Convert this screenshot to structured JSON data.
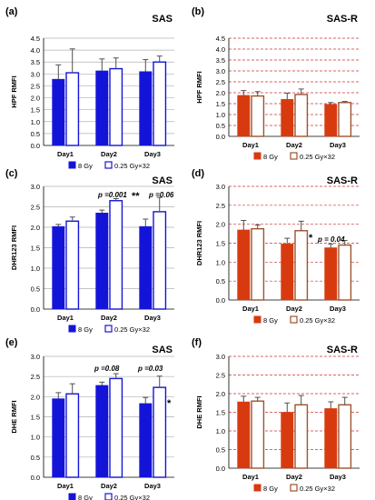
{
  "figure": {
    "panels": [
      {
        "label": "(a)",
        "title": "SAS",
        "ylabel": "HPF RMFI",
        "ylim": [
          0,
          4.5
        ],
        "yticks": [
          "0.0",
          "0.5",
          "1.0",
          "1.5",
          "2.0",
          "2.5",
          "3.0",
          "3.5",
          "4.0",
          "4.5"
        ],
        "legend": [
          "8 Gy",
          "0.25 Gy×32"
        ],
        "annotations": []
      },
      {
        "label": "(b)",
        "title": "SAS-R",
        "ylabel": "HPF RMFI",
        "ylim": [
          0,
          4.5
        ],
        "yticks": [
          "0.0",
          "0.5",
          "1.0",
          "1.5",
          "2.0",
          "2.5",
          "3.0",
          "3.5",
          "4.0",
          "4.5"
        ],
        "legend": [
          "8 Gy",
          "0.25 Gy×32"
        ],
        "annotations": []
      },
      {
        "label": "(c)",
        "title": "SAS",
        "ylabel": "DHR123 RMFI",
        "ylim": [
          0,
          3.0
        ],
        "yticks": [
          "0.0",
          "0.5",
          "1.0",
          "1.5",
          "2.0",
          "2.5",
          "3.0"
        ],
        "legend": [
          "8 Gy",
          "0.25 Gy×32"
        ],
        "annotations": [
          "p =0.001",
          "**",
          "p =0.06"
        ]
      },
      {
        "label": "(d)",
        "title": "SAS-R",
        "ylabel": "DHR123 RMFI",
        "ylim": [
          0,
          3.0
        ],
        "yticks": [
          "0.0",
          "0.5",
          "1.0",
          "1.5",
          "2.0",
          "2.5",
          "3.0"
        ],
        "legend": [
          "8 Gy",
          "0.25 Gy×32"
        ],
        "annotations": [
          "*",
          "p = 0.04"
        ]
      },
      {
        "label": "(e)",
        "title": "SAS",
        "ylabel": "DHE RMFI",
        "ylim": [
          0,
          3.0
        ],
        "yticks": [
          "0.0",
          "0.5",
          "1.0",
          "1.5",
          "2.0",
          "2.5",
          "3.0"
        ],
        "legend": [
          "8 Gy",
          "0.25 Gy×32"
        ],
        "annotations": [
          "p =0.08",
          "p =0.03",
          "*"
        ]
      },
      {
        "label": "(f)",
        "title": "SAS-R",
        "ylabel": "DHE RMFI",
        "ylim": [
          0,
          3.0
        ],
        "yticks": [
          "0.0",
          "0.5",
          "1.0",
          "1.5",
          "2.0",
          "2.5",
          "3.0"
        ],
        "legend": [
          "8 Gy",
          "0.25 Gy×32"
        ],
        "annotations": []
      }
    ]
  },
  "colors": {
    "sas_fill": "#1414d8",
    "sas_open_edge": "#1414d8",
    "sasr_fill": "#d83a10",
    "sasr_open_edge": "#a0522d",
    "open_fill": "#ffffff",
    "grid": "#b0b0b0",
    "sasr_grid": "#cc3333",
    "errorbar": "#505050"
  },
  "chart_data": [
    {
      "type": "bar",
      "categories": [
        "Day1",
        "Day2",
        "Day3"
      ],
      "ylim": [
        0,
        4.5
      ],
      "grid": "horizontal",
      "series": [
        {
          "name": "8 Gy",
          "values": [
            2.78,
            3.13,
            3.1
          ],
          "errors": [
            0.6,
            0.5,
            0.5
          ]
        },
        {
          "name": "0.25 Gy×32",
          "values": [
            3.05,
            3.22,
            3.5
          ],
          "errors": [
            1.0,
            0.45,
            0.25
          ]
        }
      ]
    },
    {
      "type": "bar",
      "categories": [
        "Day1",
        "Day2",
        "Day3"
      ],
      "ylim": [
        0,
        4.5
      ],
      "grid": "horizontal",
      "series": [
        {
          "name": "8 Gy",
          "values": [
            1.88,
            1.7,
            1.47
          ],
          "errors": [
            0.22,
            0.28,
            0.08
          ]
        },
        {
          "name": "0.25 Gy×32",
          "values": [
            1.85,
            1.92,
            1.55
          ],
          "errors": [
            0.2,
            0.25,
            0.05
          ]
        }
      ]
    },
    {
      "type": "bar",
      "categories": [
        "Day1",
        "Day2",
        "Day3"
      ],
      "ylim": [
        0,
        3.0
      ],
      "grid": "horizontal",
      "series": [
        {
          "name": "8 Gy",
          "values": [
            2.02,
            2.35,
            2.02
          ],
          "errors": [
            0.05,
            0.07,
            0.18
          ]
        },
        {
          "name": "0.25 Gy×32",
          "values": [
            2.15,
            2.65,
            2.38
          ],
          "errors": [
            0.1,
            0.05,
            0.35
          ]
        }
      ]
    },
    {
      "type": "bar",
      "categories": [
        "Day1",
        "Day2",
        "Day3"
      ],
      "ylim": [
        0,
        3.0
      ],
      "grid": "horizontal",
      "series": [
        {
          "name": "8 Gy",
          "values": [
            1.85,
            1.48,
            1.38
          ],
          "errors": [
            0.25,
            0.15,
            0.1
          ]
        },
        {
          "name": "0.25 Gy×32",
          "values": [
            1.88,
            1.83,
            1.45
          ],
          "errors": [
            0.1,
            0.25,
            0.12
          ]
        }
      ]
    },
    {
      "type": "bar",
      "categories": [
        "Day1",
        "Day2",
        "Day3"
      ],
      "ylim": [
        0,
        3.0
      ],
      "grid": "horizontal",
      "series": [
        {
          "name": "8 Gy",
          "values": [
            1.95,
            2.28,
            1.83
          ],
          "errors": [
            0.15,
            0.08,
            0.15
          ]
        },
        {
          "name": "0.25 Gy×32",
          "values": [
            2.07,
            2.45,
            2.23
          ],
          "errors": [
            0.25,
            0.12,
            0.28
          ]
        }
      ]
    },
    {
      "type": "bar",
      "categories": [
        "Day1",
        "Day2",
        "Day3"
      ],
      "ylim": [
        0,
        3.0
      ],
      "grid": "horizontal",
      "series": [
        {
          "name": "8 Gy",
          "values": [
            1.78,
            1.5,
            1.6
          ],
          "errors": [
            0.15,
            0.25,
            0.18
          ]
        },
        {
          "name": "0.25 Gy×32",
          "values": [
            1.8,
            1.7,
            1.7
          ],
          "errors": [
            0.1,
            0.25,
            0.2
          ]
        }
      ]
    }
  ]
}
